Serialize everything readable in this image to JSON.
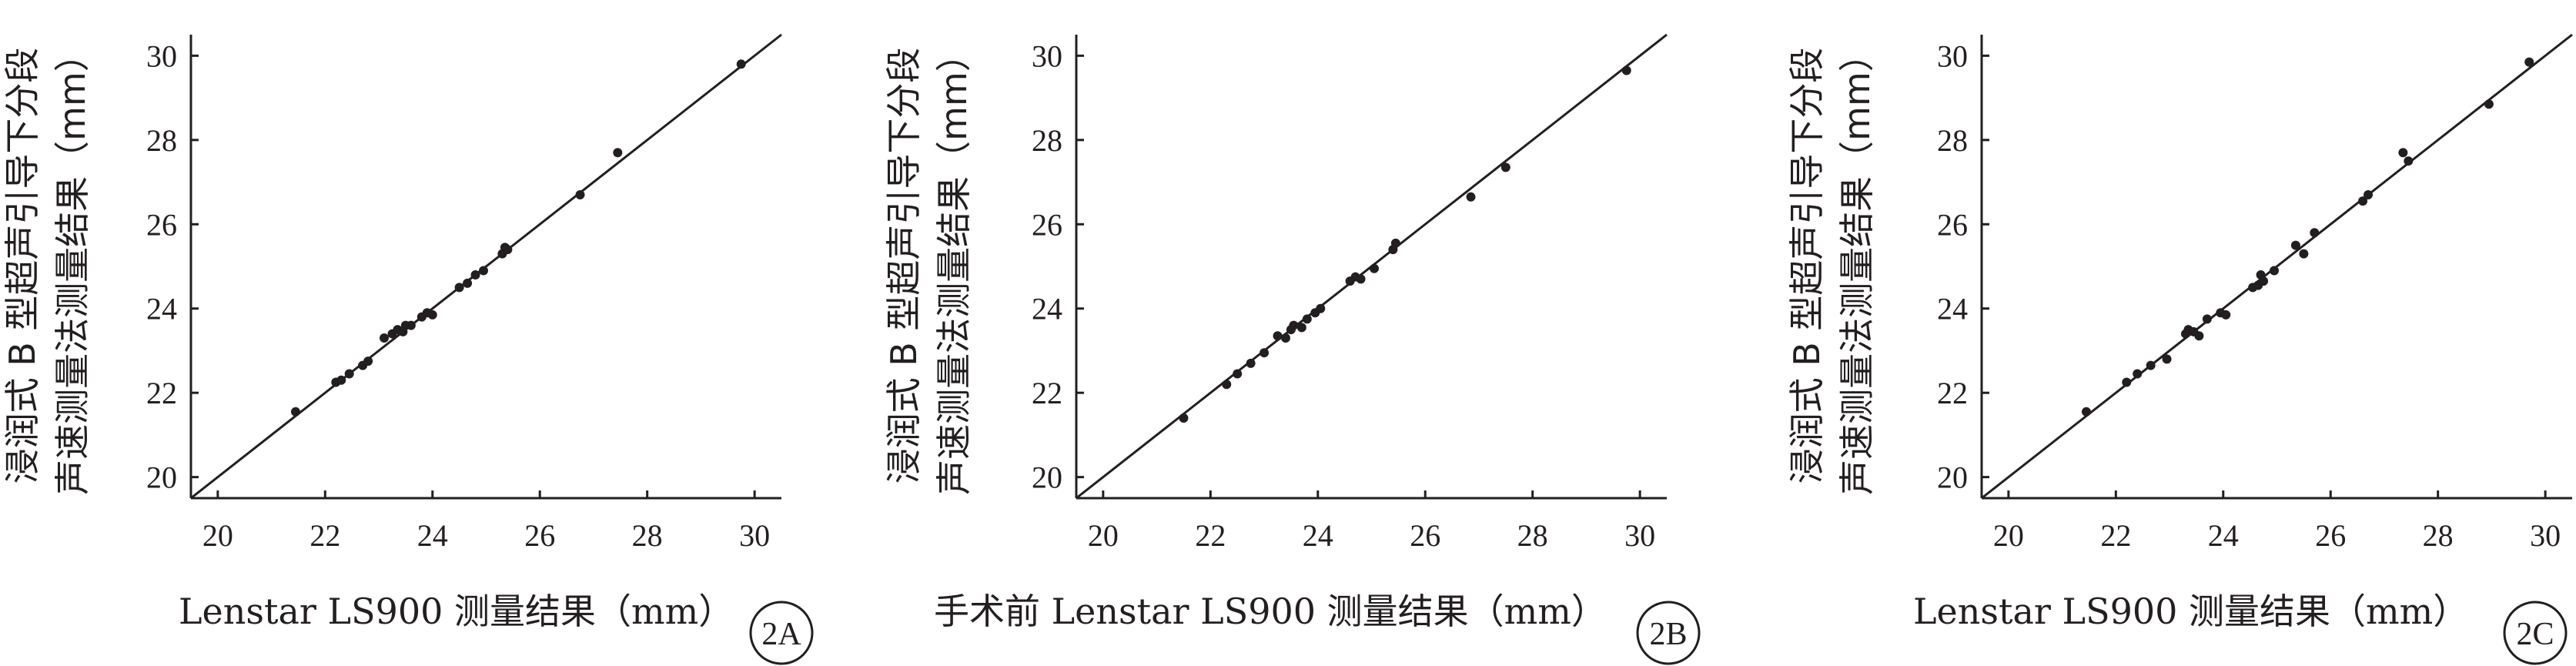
{
  "chart_data": [
    {
      "type": "scatter",
      "panel_label": "2A",
      "ylabel_lines": [
        "浸润式 B 型超声引导下分段",
        "声速测量法测量结果（mm）"
      ],
      "xlabel": "Lenstar LS900 测量结果（mm）",
      "xlim": [
        19.5,
        30.5
      ],
      "ylim": [
        19.5,
        30.5
      ],
      "xticks": [
        20,
        22,
        24,
        26,
        28,
        30
      ],
      "yticks": [
        20,
        22,
        24,
        26,
        28,
        30
      ],
      "reference_line": "y = x",
      "grid": false,
      "points": [
        [
          21.45,
          21.55
        ],
        [
          22.2,
          22.25
        ],
        [
          22.3,
          22.3
        ],
        [
          22.45,
          22.45
        ],
        [
          22.7,
          22.65
        ],
        [
          22.8,
          22.75
        ],
        [
          23.1,
          23.3
        ],
        [
          23.25,
          23.4
        ],
        [
          23.35,
          23.5
        ],
        [
          23.45,
          23.45
        ],
        [
          23.5,
          23.6
        ],
        [
          23.6,
          23.6
        ],
        [
          23.8,
          23.8
        ],
        [
          23.9,
          23.9
        ],
        [
          24.0,
          23.85
        ],
        [
          24.5,
          24.5
        ],
        [
          24.65,
          24.6
        ],
        [
          24.8,
          24.8
        ],
        [
          24.95,
          24.9
        ],
        [
          25.3,
          25.3
        ],
        [
          25.35,
          25.45
        ],
        [
          25.4,
          25.4
        ],
        [
          26.75,
          26.7
        ],
        [
          27.45,
          27.7
        ],
        [
          29.75,
          29.8
        ]
      ]
    },
    {
      "type": "scatter",
      "panel_label": "2B",
      "ylabel_lines": [
        "浸润式 B 型超声引导下分段",
        "声速测量法测量结果（mm）"
      ],
      "xlabel": "手术前 Lenstar LS900 测量结果（mm）",
      "xlim": [
        19.5,
        30.5
      ],
      "ylim": [
        19.5,
        30.5
      ],
      "xticks": [
        20,
        22,
        24,
        26,
        28,
        30
      ],
      "yticks": [
        20,
        22,
        24,
        26,
        28,
        30
      ],
      "reference_line": "y = x",
      "grid": false,
      "points": [
        [
          21.5,
          21.4
        ],
        [
          22.3,
          22.2
        ],
        [
          22.5,
          22.45
        ],
        [
          22.75,
          22.7
        ],
        [
          23.0,
          22.95
        ],
        [
          23.25,
          23.35
        ],
        [
          23.4,
          23.3
        ],
        [
          23.5,
          23.5
        ],
        [
          23.55,
          23.6
        ],
        [
          23.7,
          23.55
        ],
        [
          23.8,
          23.75
        ],
        [
          23.95,
          23.9
        ],
        [
          24.05,
          24.0
        ],
        [
          24.6,
          24.65
        ],
        [
          24.7,
          24.75
        ],
        [
          24.8,
          24.7
        ],
        [
          25.05,
          24.95
        ],
        [
          25.4,
          25.4
        ],
        [
          25.45,
          25.55
        ],
        [
          26.85,
          26.65
        ],
        [
          27.5,
          27.35
        ],
        [
          29.75,
          29.65
        ]
      ]
    },
    {
      "type": "scatter",
      "panel_label": "2C",
      "ylabel_lines": [
        "浸润式 B 型超声引导下分段",
        "声速测量法测量结果（mm）"
      ],
      "xlabel": "Lenstar LS900 测量结果（mm）",
      "xlim": [
        19.5,
        30.5
      ],
      "ylim": [
        19.5,
        30.5
      ],
      "xticks": [
        20,
        22,
        24,
        26,
        28,
        30
      ],
      "yticks": [
        20,
        22,
        24,
        26,
        28,
        30
      ],
      "reference_line": "y = x",
      "grid": false,
      "points": [
        [
          21.45,
          21.55
        ],
        [
          22.2,
          22.25
        ],
        [
          22.4,
          22.45
        ],
        [
          22.65,
          22.65
        ],
        [
          22.95,
          22.8
        ],
        [
          23.3,
          23.4
        ],
        [
          23.35,
          23.5
        ],
        [
          23.45,
          23.45
        ],
        [
          23.55,
          23.35
        ],
        [
          23.7,
          23.75
        ],
        [
          23.95,
          23.9
        ],
        [
          24.05,
          23.85
        ],
        [
          24.55,
          24.5
        ],
        [
          24.65,
          24.55
        ],
        [
          24.7,
          24.8
        ],
        [
          24.75,
          24.65
        ],
        [
          24.95,
          24.9
        ],
        [
          25.35,
          25.5
        ],
        [
          25.5,
          25.3
        ],
        [
          25.7,
          25.8
        ],
        [
          26.6,
          26.55
        ],
        [
          26.7,
          26.7
        ],
        [
          27.35,
          27.7
        ],
        [
          27.45,
          27.5
        ],
        [
          28.95,
          28.85
        ],
        [
          29.7,
          29.85
        ]
      ]
    }
  ]
}
